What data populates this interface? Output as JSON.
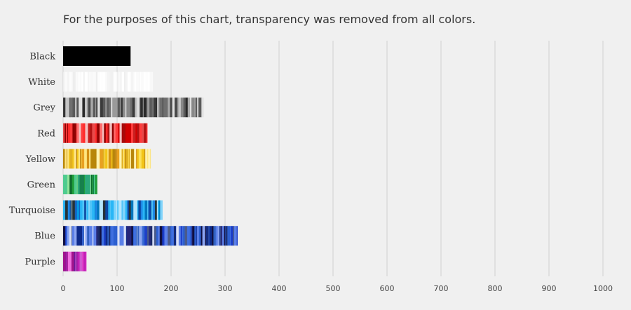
{
  "chart_data": {
    "type": "bar",
    "orientation": "horizontal",
    "title": "For the purposes of this chart, transparency was removed from all colors.",
    "xlabel": "",
    "ylabel": "",
    "xlim": [
      0,
      1000
    ],
    "x_ticks": [
      0,
      100,
      200,
      300,
      400,
      500,
      600,
      700,
      800,
      900,
      1000
    ],
    "grid": true,
    "legend": "none",
    "categories": [
      "Black",
      "White",
      "Grey",
      "Red",
      "Yellow",
      "Green",
      "Turquoise",
      "Blue",
      "Purple"
    ],
    "values": [
      125,
      166,
      260,
      156,
      162,
      63,
      184,
      323,
      43
    ],
    "bar_palettes": [
      [
        "#000000"
      ],
      [
        "#ffffff",
        "#fafafa",
        "#f4f4f4",
        "#fdfdfd",
        "#eeeeee",
        "#f8f8f8"
      ],
      [
        "#3a3a3a",
        "#5a5a5a",
        "#888888",
        "#aaaaaa",
        "#2a2a2a",
        "#c4c4c4",
        "#6e6e6e",
        "#9a9a9a",
        "#4a4a4a",
        "#e0e0e0"
      ],
      [
        "#d10000",
        "#ff2a2a",
        "#b31313",
        "#e84848",
        "#ff6a6a",
        "#8e0000",
        "#c82020",
        "#ff3c3c",
        "#a80a0a",
        "#f3c0c0"
      ],
      [
        "#f2c418",
        "#e8a01f",
        "#fbe05a",
        "#d49015",
        "#f7d14a",
        "#b8860b",
        "#ffe680",
        "#e0b020",
        "#c28a18",
        "#fff2b0"
      ],
      [
        "#1f9d3a",
        "#3cbf5a",
        "#17804d",
        "#6fd07f",
        "#2aa87a",
        "#0d6b2e",
        "#4ecb8f",
        "#8fe39a"
      ],
      [
        "#1e88e5",
        "#29b6f6",
        "#0d47a1",
        "#4fc3f7",
        "#0277bd",
        "#81d4fa",
        "#1565c0",
        "#039be5",
        "#b3e5fc",
        "#263238"
      ],
      [
        "#1a3cc8",
        "#0d2a8a",
        "#3f6fe0",
        "#26267a",
        "#5a7fe8",
        "#101040",
        "#2c5fd0",
        "#8aa4f0",
        "#1c2c6a",
        "#4a5a8a",
        "#d8e0f8",
        "#3060c0"
      ],
      [
        "#c21fb6",
        "#8e1a9c",
        "#e040c8",
        "#6a1b9a",
        "#d058d0",
        "#a0148c",
        "#f070e0",
        "#7b2a8a"
      ]
    ]
  }
}
